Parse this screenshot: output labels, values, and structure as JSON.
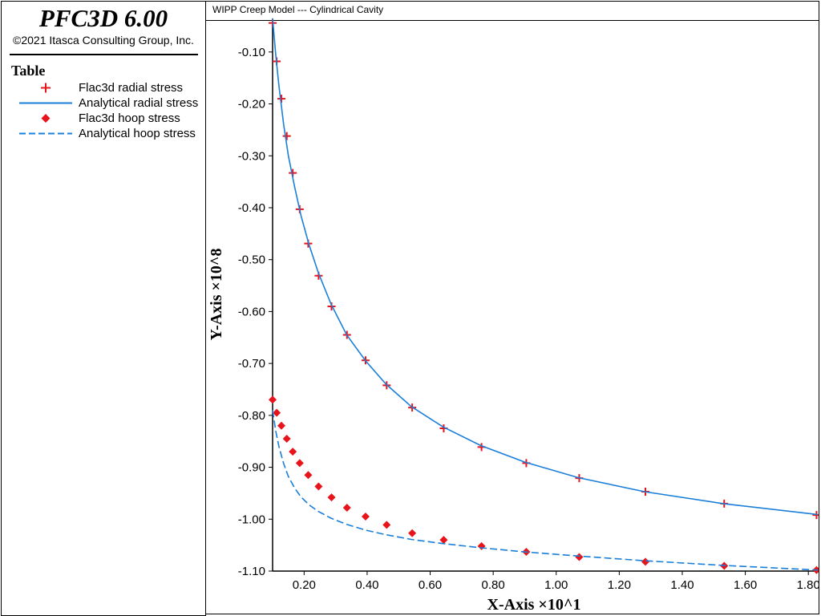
{
  "app": {
    "title": "PFC3D 6.00",
    "copyright": "©2021 Itasca Consulting Group, Inc."
  },
  "legend": {
    "title": "Table",
    "items": [
      {
        "label": "Flac3d radial stress",
        "symbol": "plus-marker",
        "color": "#e8141c"
      },
      {
        "label": "Analytical radial stress",
        "symbol": "solid-line",
        "color": "#1a7fd8"
      },
      {
        "label": "Flac3d hoop stress",
        "symbol": "diamond-marker",
        "color": "#e8141c"
      },
      {
        "label": "Analytical hoop stress",
        "symbol": "dashed-line",
        "color": "#1a7fd8"
      }
    ]
  },
  "plot": {
    "caption": "WIPP Creep Model --- Cylindrical Cavity"
  },
  "chart_data": {
    "type": "line",
    "xlabel": "X-Axis ×10^1",
    "ylabel": "Y-Axis ×10^8",
    "xlim": [
      0.1,
      1.83
    ],
    "ylim": [
      -1.1,
      -0.04
    ],
    "xticks": [
      "0.20",
      "0.40",
      "0.60",
      "0.80",
      "1.00",
      "1.20",
      "1.40",
      "1.60",
      "1.80"
    ],
    "yticks": [
      "-0.10",
      "-0.20",
      "-0.30",
      "-0.40",
      "-0.50",
      "-0.60",
      "-0.70",
      "-0.80",
      "-0.90",
      "-1.00",
      "-1.10"
    ],
    "grid": false,
    "legend_placement": "left-panel",
    "series": [
      {
        "name": "Flac3d radial stress",
        "style": "plus",
        "color": "#e8141c",
        "points": [
          [
            0.1,
            -0.044
          ],
          [
            0.113,
            -0.118
          ],
          [
            0.128,
            -0.19
          ],
          [
            0.145,
            -0.262
          ],
          [
            0.164,
            -0.333
          ],
          [
            0.186,
            -0.403
          ],
          [
            0.213,
            -0.469
          ],
          [
            0.246,
            -0.531
          ],
          [
            0.287,
            -0.59
          ],
          [
            0.336,
            -0.645
          ],
          [
            0.395,
            -0.694
          ],
          [
            0.462,
            -0.742
          ],
          [
            0.543,
            -0.785
          ],
          [
            0.643,
            -0.825
          ],
          [
            0.763,
            -0.861
          ],
          [
            0.905,
            -0.892
          ],
          [
            1.073,
            -0.921
          ],
          [
            1.283,
            -0.947
          ],
          [
            1.533,
            -0.97
          ],
          [
            1.826,
            -0.992
          ]
        ]
      },
      {
        "name": "Analytical radial stress",
        "style": "solid",
        "color": "#1a7fd8",
        "points": [
          [
            0.1,
            -0.035
          ],
          [
            0.11,
            -0.105
          ],
          [
            0.12,
            -0.165
          ],
          [
            0.135,
            -0.24
          ],
          [
            0.15,
            -0.3
          ],
          [
            0.17,
            -0.36
          ],
          [
            0.19,
            -0.415
          ],
          [
            0.215,
            -0.47
          ],
          [
            0.245,
            -0.525
          ],
          [
            0.285,
            -0.585
          ],
          [
            0.335,
            -0.645
          ],
          [
            0.395,
            -0.695
          ],
          [
            0.46,
            -0.74
          ],
          [
            0.54,
            -0.783
          ],
          [
            0.64,
            -0.822
          ],
          [
            0.76,
            -0.858
          ],
          [
            0.9,
            -0.89
          ],
          [
            1.07,
            -0.92
          ],
          [
            1.28,
            -0.947
          ],
          [
            1.53,
            -0.97
          ],
          [
            1.83,
            -0.991
          ]
        ]
      },
      {
        "name": "Flac3d hoop stress",
        "style": "diamond",
        "color": "#e8141c",
        "points": [
          [
            0.1,
            -0.77
          ],
          [
            0.113,
            -0.795
          ],
          [
            0.128,
            -0.82
          ],
          [
            0.145,
            -0.845
          ],
          [
            0.164,
            -0.87
          ],
          [
            0.186,
            -0.892
          ],
          [
            0.213,
            -0.915
          ],
          [
            0.246,
            -0.937
          ],
          [
            0.287,
            -0.958
          ],
          [
            0.336,
            -0.978
          ],
          [
            0.395,
            -0.995
          ],
          [
            0.462,
            -1.011
          ],
          [
            0.543,
            -1.027
          ],
          [
            0.643,
            -1.04
          ],
          [
            0.763,
            -1.052
          ],
          [
            0.905,
            -1.063
          ],
          [
            1.073,
            -1.073
          ],
          [
            1.283,
            -1.082
          ],
          [
            1.533,
            -1.09
          ],
          [
            1.826,
            -1.098
          ]
        ]
      },
      {
        "name": "Analytical hoop stress",
        "style": "dashed",
        "color": "#1a7fd8",
        "points": [
          [
            0.1,
            -0.79
          ],
          [
            0.11,
            -0.83
          ],
          [
            0.12,
            -0.86
          ],
          [
            0.135,
            -0.893
          ],
          [
            0.15,
            -0.918
          ],
          [
            0.17,
            -0.94
          ],
          [
            0.19,
            -0.957
          ],
          [
            0.215,
            -0.972
          ],
          [
            0.245,
            -0.985
          ],
          [
            0.285,
            -0.998
          ],
          [
            0.335,
            -1.01
          ],
          [
            0.395,
            -1.021
          ],
          [
            0.46,
            -1.03
          ],
          [
            0.54,
            -1.039
          ],
          [
            0.64,
            -1.047
          ],
          [
            0.76,
            -1.055
          ],
          [
            0.9,
            -1.063
          ],
          [
            1.07,
            -1.071
          ],
          [
            1.28,
            -1.08
          ],
          [
            1.53,
            -1.089
          ],
          [
            1.83,
            -1.098
          ]
        ]
      }
    ]
  }
}
